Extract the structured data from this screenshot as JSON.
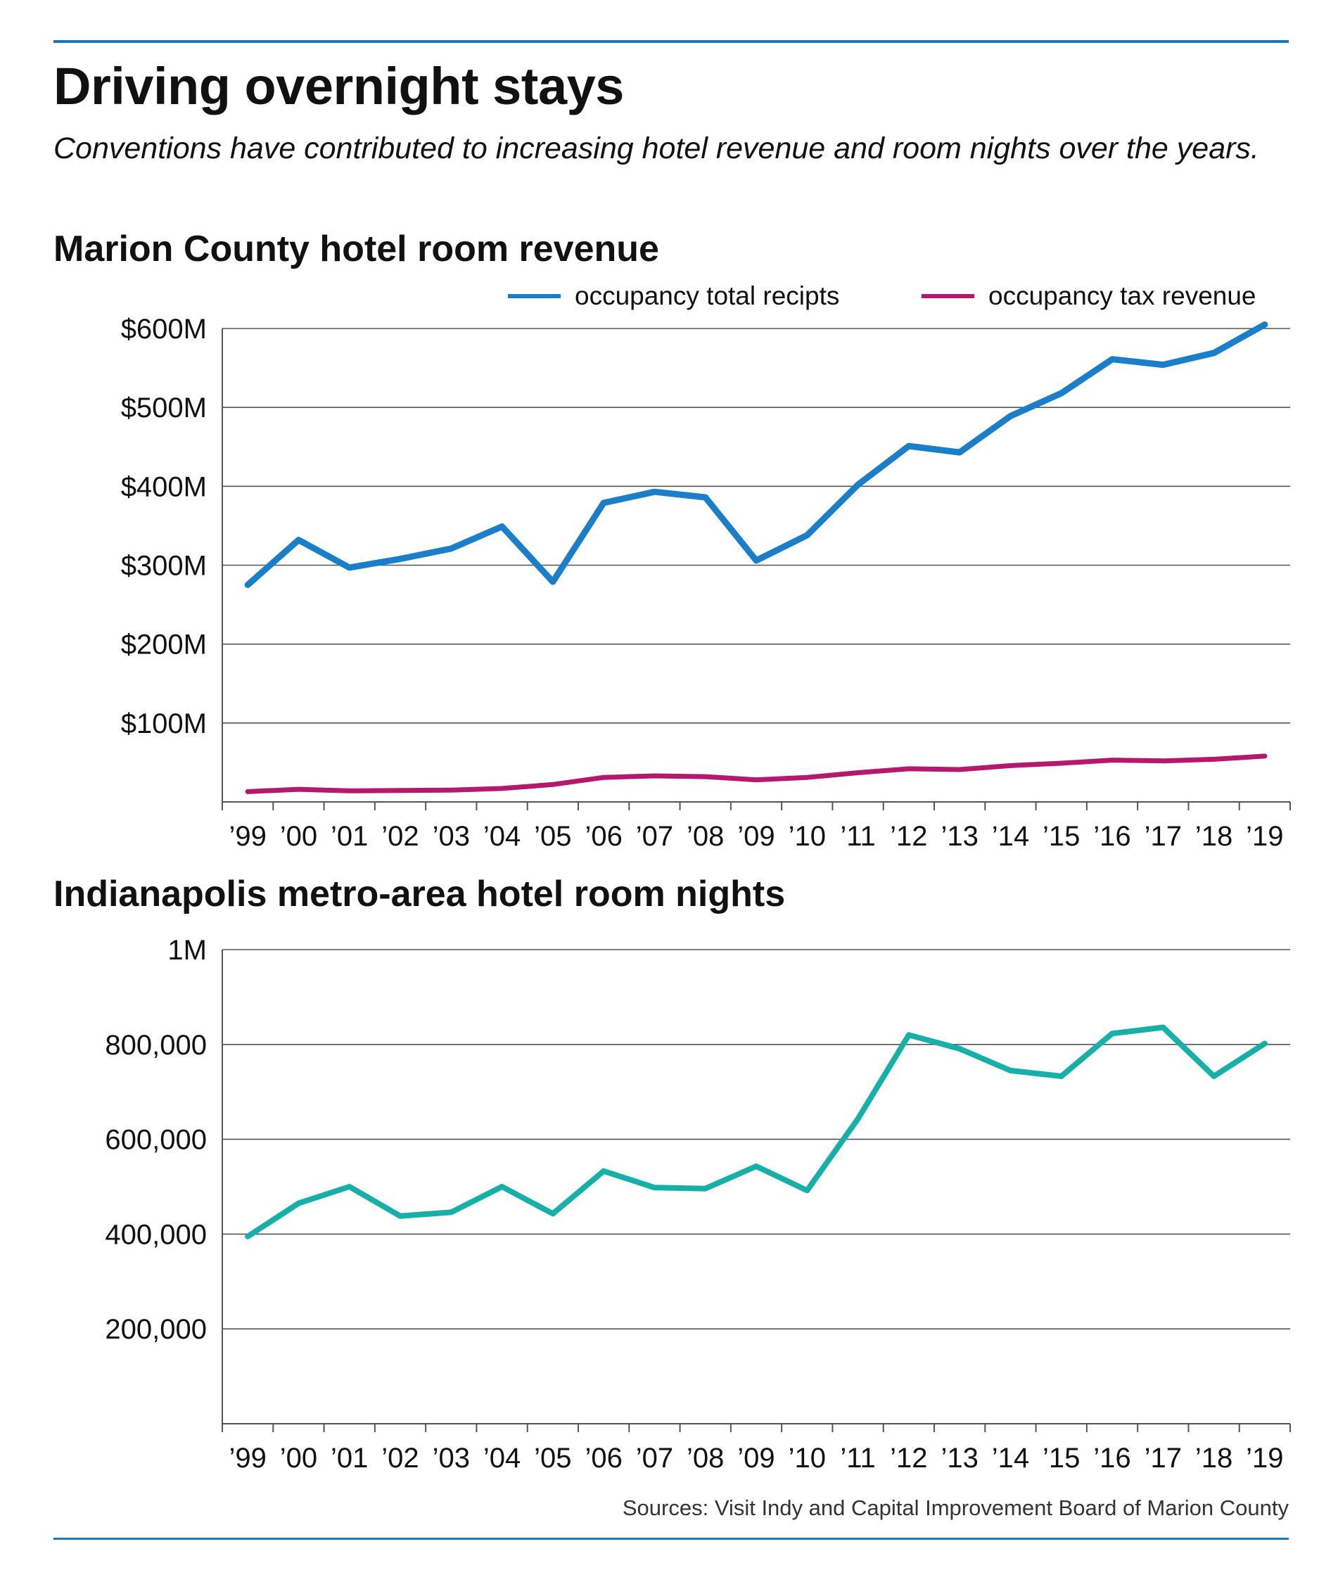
{
  "header": {
    "title": "Driving overnight stays",
    "subtitle": "Conventions have contributed to increasing hotel revenue and room nights over the years."
  },
  "source": "Sources: Visit Indy and Capital Improvement Board of Marion County",
  "colors": {
    "accent_rule": "#1e78be",
    "receipts": "#1a7fc8",
    "tax": "#b5196e",
    "room_nights": "#17b0a8",
    "grid": "#555555"
  },
  "chart_data": [
    {
      "type": "line",
      "title": "Marion County hotel room revenue",
      "categories": [
        "’99",
        "’00",
        "’01",
        "’02",
        "’03",
        "’04",
        "’05",
        "’06",
        "’07",
        "’08",
        "’09",
        "’10",
        "’11",
        "’12",
        "’13",
        "’14",
        "’15",
        "’16",
        "’17",
        "’18",
        "’19"
      ],
      "yticks": [
        {
          "value": 100000000,
          "label": "$100M"
        },
        {
          "value": 200000000,
          "label": "$200M"
        },
        {
          "value": 300000000,
          "label": "$300M"
        },
        {
          "value": 400000000,
          "label": "$400M"
        },
        {
          "value": 500000000,
          "label": "$500M"
        },
        {
          "value": 600000000,
          "label": "$600M"
        }
      ],
      "ylim": [
        0,
        600000000
      ],
      "grid": true,
      "legend_position": "top-right",
      "series": [
        {
          "name": "occupancy total recipts",
          "color": "#1a7fc8",
          "values": [
            275000000,
            332000000,
            297000000,
            308000000,
            321000000,
            349000000,
            279000000,
            379000000,
            393000000,
            386000000,
            306000000,
            338000000,
            402000000,
            451000000,
            443000000,
            489000000,
            518000000,
            561000000,
            554000000,
            569000000,
            605000000
          ]
        },
        {
          "name": "occupancy tax revenue",
          "color": "#b5196e",
          "values": [
            13000000,
            16000000,
            14000000,
            14500000,
            15000000,
            17000000,
            22000000,
            31000000,
            33000000,
            32000000,
            28000000,
            31000000,
            37000000,
            42000000,
            41000000,
            46000000,
            49000000,
            53000000,
            52000000,
            54000000,
            58000000
          ]
        }
      ]
    },
    {
      "type": "line",
      "title": "Indianapolis metro-area hotel room nights",
      "categories": [
        "’99",
        "’00",
        "’01",
        "’02",
        "’03",
        "’04",
        "’05",
        "’06",
        "’07",
        "’08",
        "’09",
        "’10",
        "’11",
        "’12",
        "’13",
        "’14",
        "’15",
        "’16",
        "’17",
        "’18",
        "’19"
      ],
      "yticks": [
        {
          "value": 200000,
          "label": "200,000"
        },
        {
          "value": 400000,
          "label": "400,000"
        },
        {
          "value": 600000,
          "label": "600,000"
        },
        {
          "value": 800000,
          "label": "800,000"
        },
        {
          "value": 1000000,
          "label": "1M"
        }
      ],
      "ylim": [
        0,
        1000000
      ],
      "grid": true,
      "series": [
        {
          "name": "",
          "color": "#17b0a8",
          "values": [
            395000,
            465000,
            500000,
            438000,
            446000,
            500000,
            443000,
            533000,
            498000,
            496000,
            543000,
            492000,
            643000,
            820000,
            791000,
            745000,
            733000,
            823000,
            836000,
            733000,
            802000
          ]
        }
      ]
    }
  ]
}
